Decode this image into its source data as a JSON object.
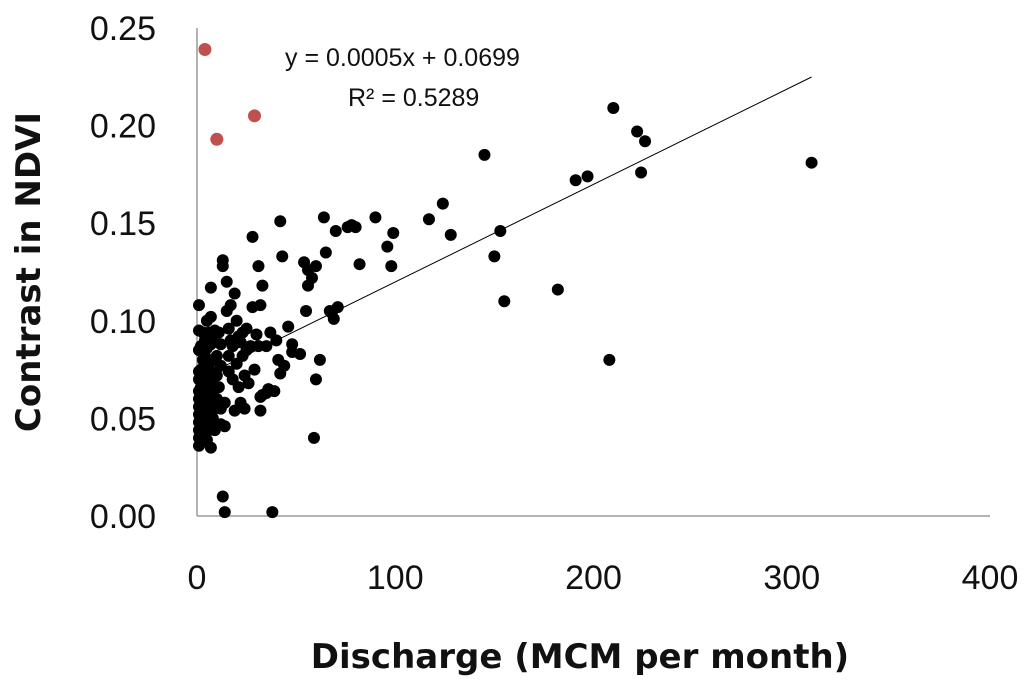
{
  "chart_data": {
    "type": "scatter",
    "title": "",
    "xlabel": "Discharge (MCM per month)",
    "ylabel": "Contrast in NDVI",
    "xlim": [
      0,
      400
    ],
    "ylim": [
      0,
      0.25
    ],
    "x_ticks": [
      "0",
      "100",
      "200",
      "300",
      "400"
    ],
    "y_ticks": [
      "0.00",
      "0.05",
      "0.10",
      "0.15",
      "0.20",
      "0.25"
    ],
    "grid": false,
    "legend": "none",
    "annotations": {
      "equation": "y = 0.0005x + 0.0699",
      "r_squared": "R² = 0.5289"
    },
    "trendline": {
      "slope": 0.0005,
      "intercept": 0.0699,
      "x_range": [
        0,
        310
      ]
    },
    "colors": {
      "points": "#000000",
      "outliers": "#c0504d",
      "trendline": "#000000"
    },
    "series": [
      {
        "points": [
          [
            1,
            0.036
          ],
          [
            1,
            0.04
          ],
          [
            1,
            0.044
          ],
          [
            1,
            0.048
          ],
          [
            1,
            0.052
          ],
          [
            1,
            0.056
          ],
          [
            1,
            0.06
          ],
          [
            1,
            0.064
          ],
          [
            1,
            0.07
          ],
          [
            1,
            0.074
          ],
          [
            1,
            0.085
          ],
          [
            1,
            0.095
          ],
          [
            1,
            0.108
          ],
          [
            2,
            0.038
          ],
          [
            2,
            0.046
          ],
          [
            2,
            0.058
          ],
          [
            2,
            0.066
          ],
          [
            2,
            0.075
          ],
          [
            2,
            0.087
          ],
          [
            3,
            0.042
          ],
          [
            3,
            0.05
          ],
          [
            3,
            0.062
          ],
          [
            3,
            0.072
          ],
          [
            3,
            0.08
          ],
          [
            3,
            0.094
          ],
          [
            4,
            0.045
          ],
          [
            4,
            0.055
          ],
          [
            4,
            0.066
          ],
          [
            4,
            0.082
          ],
          [
            4,
            0.09
          ],
          [
            5,
            0.039
          ],
          [
            5,
            0.049
          ],
          [
            5,
            0.058
          ],
          [
            5,
            0.07
          ],
          [
            5,
            0.086
          ],
          [
            5,
            0.1
          ],
          [
            6,
            0.044
          ],
          [
            6,
            0.053
          ],
          [
            6,
            0.06
          ],
          [
            6,
            0.076
          ],
          [
            6,
            0.094
          ],
          [
            7,
            0.035
          ],
          [
            7,
            0.047
          ],
          [
            7,
            0.057
          ],
          [
            7,
            0.068
          ],
          [
            7,
            0.088
          ],
          [
            7,
            0.102
          ],
          [
            7,
            0.117
          ],
          [
            8,
            0.05
          ],
          [
            8,
            0.064
          ],
          [
            8,
            0.08
          ],
          [
            8,
            0.092
          ],
          [
            9,
            0.044
          ],
          [
            9,
            0.055
          ],
          [
            9,
            0.073
          ],
          [
            9,
            0.095
          ],
          [
            10,
            0.06
          ],
          [
            10,
            0.072
          ],
          [
            10,
            0.082
          ],
          [
            11,
            0.066
          ],
          [
            11,
            0.094
          ],
          [
            12,
            0.047
          ],
          [
            12,
            0.055
          ],
          [
            12,
            0.077
          ],
          [
            12,
            0.088
          ],
          [
            13,
            0.01
          ],
          [
            13,
            0.128
          ],
          [
            13,
            0.131
          ],
          [
            14,
            0.002
          ],
          [
            14,
            0.046
          ],
          [
            14,
            0.058
          ],
          [
            15,
            0.105
          ],
          [
            15,
            0.12
          ],
          [
            16,
            0.074
          ],
          [
            16,
            0.082
          ],
          [
            16,
            0.096
          ],
          [
            17,
            0.108
          ],
          [
            17,
            0.09
          ],
          [
            18,
            0.07
          ],
          [
            18,
            0.087
          ],
          [
            19,
            0.054
          ],
          [
            19,
            0.114
          ],
          [
            20,
            0.078
          ],
          [
            20,
            0.1
          ],
          [
            21,
            0.066
          ],
          [
            21,
            0.092
          ],
          [
            22,
            0.058
          ],
          [
            22,
            0.089
          ],
          [
            23,
            0.082
          ],
          [
            23,
            0.094
          ],
          [
            24,
            0.055
          ],
          [
            24,
            0.072
          ],
          [
            25,
            0.096
          ],
          [
            25,
            0.085
          ],
          [
            26,
            0.068
          ],
          [
            27,
            0.087
          ],
          [
            28,
            0.143
          ],
          [
            28,
            0.107
          ],
          [
            29,
            0.075
          ],
          [
            30,
            0.093
          ],
          [
            31,
            0.128
          ],
          [
            31,
            0.087
          ],
          [
            32,
            0.108
          ],
          [
            32,
            0.054
          ],
          [
            32,
            0.061
          ],
          [
            33,
            0.118
          ],
          [
            33,
            0.062
          ],
          [
            35,
            0.087
          ],
          [
            35,
            0.063
          ],
          [
            36,
            0.065
          ],
          [
            37,
            0.094
          ],
          [
            38,
            0.002
          ],
          [
            39,
            0.064
          ],
          [
            40,
            0.09
          ],
          [
            41,
            0.08
          ],
          [
            42,
            0.151
          ],
          [
            42,
            0.073
          ],
          [
            43,
            0.133
          ],
          [
            44,
            0.077
          ],
          [
            46,
            0.097
          ],
          [
            48,
            0.088
          ],
          [
            48,
            0.084
          ],
          [
            52,
            0.083
          ],
          [
            54,
            0.13
          ],
          [
            55,
            0.105
          ],
          [
            56,
            0.126
          ],
          [
            56,
            0.118
          ],
          [
            58,
            0.122
          ],
          [
            59,
            0.04
          ],
          [
            60,
            0.07
          ],
          [
            60,
            0.128
          ],
          [
            62,
            0.08
          ],
          [
            64,
            0.153
          ],
          [
            65,
            0.135
          ],
          [
            67,
            0.105
          ],
          [
            68,
            0.104
          ],
          [
            69,
            0.101
          ],
          [
            70,
            0.146
          ],
          [
            71,
            0.107
          ],
          [
            76,
            0.148
          ],
          [
            78,
            0.149
          ],
          [
            80,
            0.148
          ],
          [
            82,
            0.129
          ],
          [
            90,
            0.153
          ],
          [
            96,
            0.138
          ],
          [
            98,
            0.128
          ],
          [
            99,
            0.145
          ],
          [
            117,
            0.152
          ],
          [
            124,
            0.16
          ],
          [
            128,
            0.144
          ],
          [
            145,
            0.185
          ],
          [
            150,
            0.133
          ],
          [
            153,
            0.146
          ],
          [
            155,
            0.11
          ],
          [
            182,
            0.116
          ],
          [
            191,
            0.172
          ],
          [
            197,
            0.174
          ],
          [
            208,
            0.08
          ],
          [
            210,
            0.209
          ],
          [
            222,
            0.197
          ],
          [
            224,
            0.176
          ],
          [
            226,
            0.192
          ],
          [
            310,
            0.181
          ]
        ]
      },
      {
        "points": [
          [
            4,
            0.239
          ],
          [
            10,
            0.193
          ],
          [
            29,
            0.205
          ]
        ]
      }
    ]
  }
}
